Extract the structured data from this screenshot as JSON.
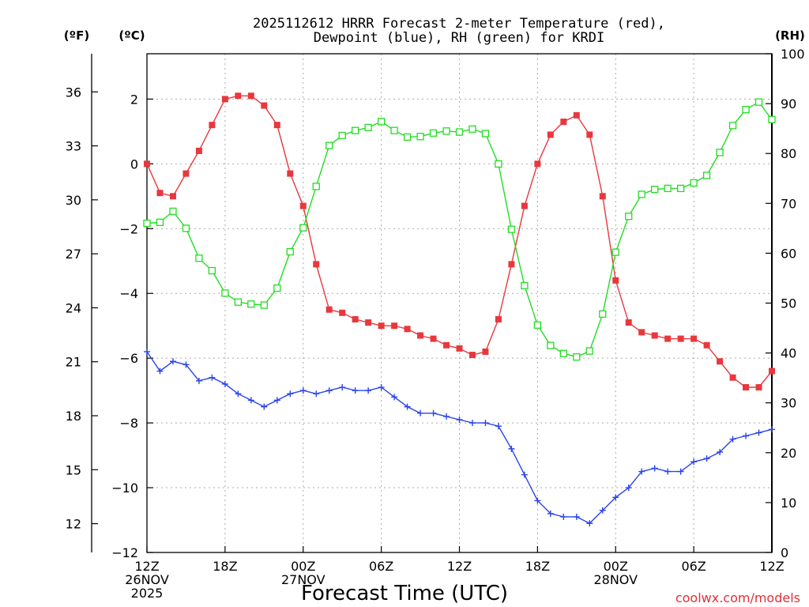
{
  "chart_data": {
    "type": "line",
    "title_lines": [
      "2025112612 HRRR Forecast 2-meter Temperature (red),",
      "Dewpoint (blue), RH (green) for KRDI"
    ],
    "units": {
      "fahrenheit": "(ºF)",
      "celsius": "(ºC)",
      "rh": "(RH)"
    },
    "xlabel": "Forecast Time (UTC)",
    "credit": "coolwx.com/models",
    "x_range_hours": [
      0,
      48
    ],
    "y_celsius_range": [
      -12,
      3.4
    ],
    "y_rh_range": [
      0,
      100
    ],
    "fahrenheit_ticks": [
      12,
      15,
      18,
      21,
      24,
      27,
      30,
      33,
      36
    ],
    "celsius_ticks": [
      -12,
      -10,
      -8,
      -6,
      -4,
      -2,
      0,
      2
    ],
    "rh_ticks": [
      0,
      10,
      20,
      30,
      40,
      50,
      60,
      70,
      80,
      90,
      100
    ],
    "x_ticks": [
      {
        "hour": 0,
        "lines": [
          "12Z",
          "26NOV",
          "2025"
        ]
      },
      {
        "hour": 6,
        "lines": [
          "18Z"
        ]
      },
      {
        "hour": 12,
        "lines": [
          "00Z",
          "27NOV"
        ]
      },
      {
        "hour": 18,
        "lines": [
          "06Z"
        ]
      },
      {
        "hour": 24,
        "lines": [
          "12Z"
        ]
      },
      {
        "hour": 30,
        "lines": [
          "18Z"
        ]
      },
      {
        "hour": 36,
        "lines": [
          "00Z",
          "28NOV"
        ]
      },
      {
        "hour": 42,
        "lines": [
          "06Z"
        ]
      },
      {
        "hour": 48,
        "lines": [
          "12Z"
        ]
      }
    ],
    "grid": true,
    "series": [
      {
        "name": "Temperature (red)",
        "axis": "celsius",
        "color": "#e8383d",
        "marker": "filled-square",
        "values": [
          0.0,
          -0.9,
          -1.0,
          -0.3,
          0.4,
          1.2,
          2.0,
          2.1,
          2.1,
          1.8,
          1.2,
          -0.3,
          -1.3,
          -3.1,
          -4.5,
          -4.6,
          -4.8,
          -4.9,
          -5.0,
          -5.0,
          -5.1,
          -5.3,
          -5.4,
          -5.6,
          -5.7,
          -5.9,
          -5.8,
          -4.8,
          -3.1,
          -1.3,
          0.0,
          0.9,
          1.3,
          1.5,
          0.9,
          -1.0,
          -3.6,
          -4.9,
          -5.2,
          -5.3,
          -5.4,
          -5.4,
          -5.4,
          -5.6,
          -6.1,
          -6.6,
          -6.9,
          -6.9,
          -6.4
        ]
      },
      {
        "name": "Dewpoint (blue)",
        "axis": "celsius",
        "color": "#2b44ee",
        "marker": "plus",
        "values": [
          -5.8,
          -6.4,
          -6.1,
          -6.2,
          -6.7,
          -6.6,
          -6.8,
          -7.1,
          -7.3,
          -7.5,
          -7.3,
          -7.1,
          -7.0,
          -7.1,
          -7.0,
          -6.9,
          -7.0,
          -7.0,
          -6.9,
          -7.2,
          -7.5,
          -7.7,
          -7.7,
          -7.8,
          -7.9,
          -8.0,
          -8.0,
          -8.1,
          -8.8,
          -9.6,
          -10.4,
          -10.8,
          -10.9,
          -10.9,
          -11.1,
          -10.7,
          -10.3,
          -10.0,
          -9.5,
          -9.4,
          -9.5,
          -9.5,
          -9.2,
          -9.1,
          -8.9,
          -8.5,
          -8.4,
          -8.3,
          -8.2
        ]
      },
      {
        "name": "RH (green)",
        "axis": "rh",
        "color": "#22dd22",
        "marker": "open-square",
        "values": [
          66.0,
          66.2,
          68.4,
          65.0,
          59.0,
          56.5,
          52.0,
          50.2,
          49.8,
          49.6,
          53.0,
          60.3,
          65.1,
          73.4,
          81.6,
          83.6,
          84.6,
          85.2,
          86.4,
          84.6,
          83.3,
          83.4,
          84.1,
          84.5,
          84.3,
          84.9,
          84.0,
          77.9,
          64.8,
          53.5,
          45.6,
          41.5,
          39.9,
          39.2,
          40.4,
          47.8,
          60.2,
          67.4,
          71.8,
          72.8,
          73.0,
          73.0,
          74.1,
          75.6,
          80.2,
          85.6,
          88.8,
          90.3,
          86.8
        ]
      }
    ]
  }
}
